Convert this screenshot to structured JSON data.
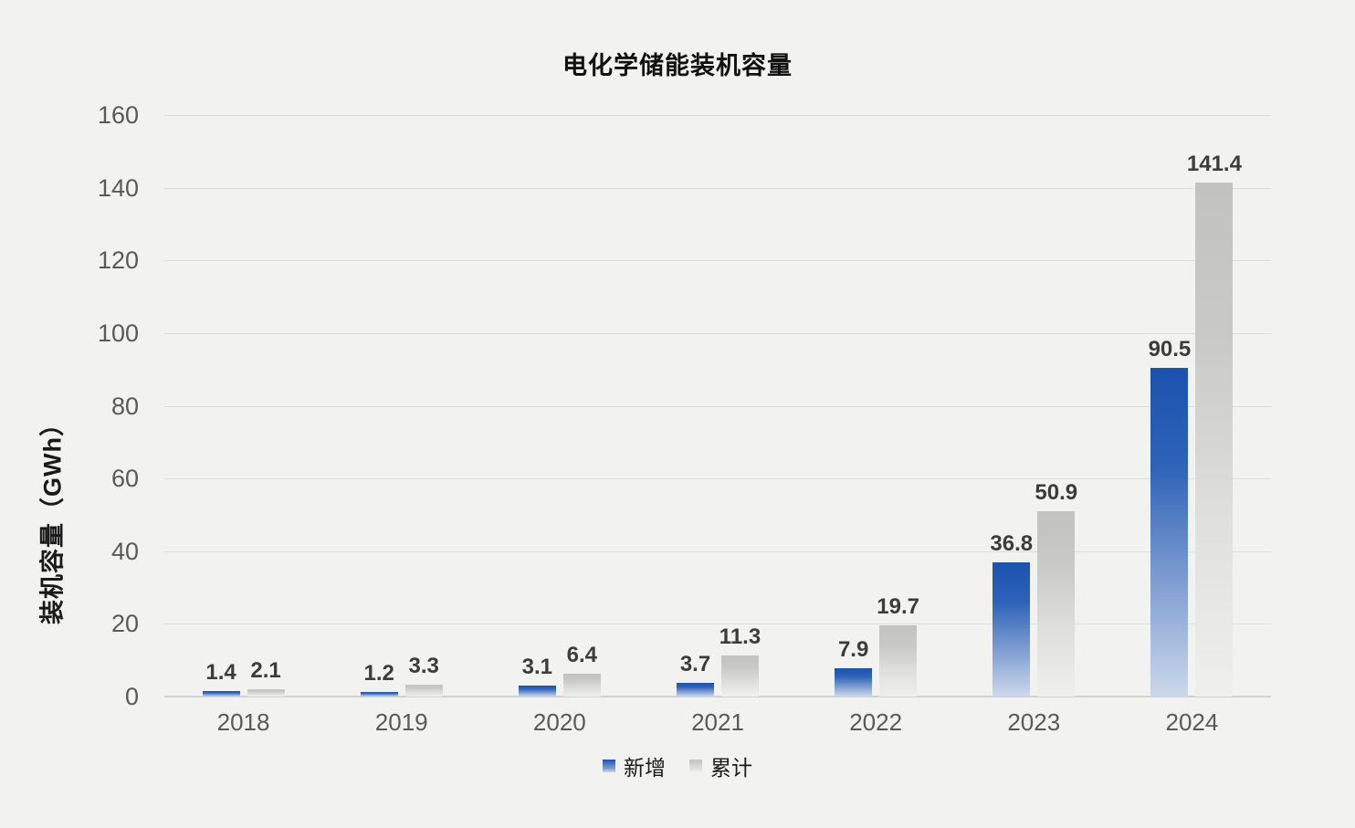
{
  "chart_data": {
    "type": "bar",
    "title": "电化学储能装机容量",
    "ylabel": "装机容量（GWh）",
    "xlabel": "",
    "categories": [
      "2018",
      "2019",
      "2020",
      "2021",
      "2022",
      "2023",
      "2024"
    ],
    "series": [
      {
        "name": "新增",
        "values": [
          1.4,
          1.2,
          3.1,
          3.7,
          7.9,
          36.8,
          90.5
        ],
        "gradient": [
          "#1b52ae",
          "#2e63b8",
          "#7f9dd1",
          "#ccd8eb"
        ]
      },
      {
        "name": "累计",
        "values": [
          2.1,
          3.3,
          6.4,
          11.3,
          19.7,
          50.9,
          141.4
        ],
        "gradient": [
          "#c2c2c1",
          "#c9c9c8",
          "#dfdfde",
          "#efefed"
        ]
      }
    ],
    "ylim": [
      0,
      160
    ],
    "yticks": [
      0,
      20,
      40,
      60,
      80,
      100,
      120,
      140,
      160
    ],
    "grid": true,
    "data_labels": true,
    "legend_position": "bottom"
  },
  "colors": {
    "background": "#f2f2f0",
    "gridline": "#dddddc",
    "axis_line": "#d1d1d0",
    "tick_label": "#595959",
    "data_label": "#3c3c3c",
    "title": "#111111"
  }
}
